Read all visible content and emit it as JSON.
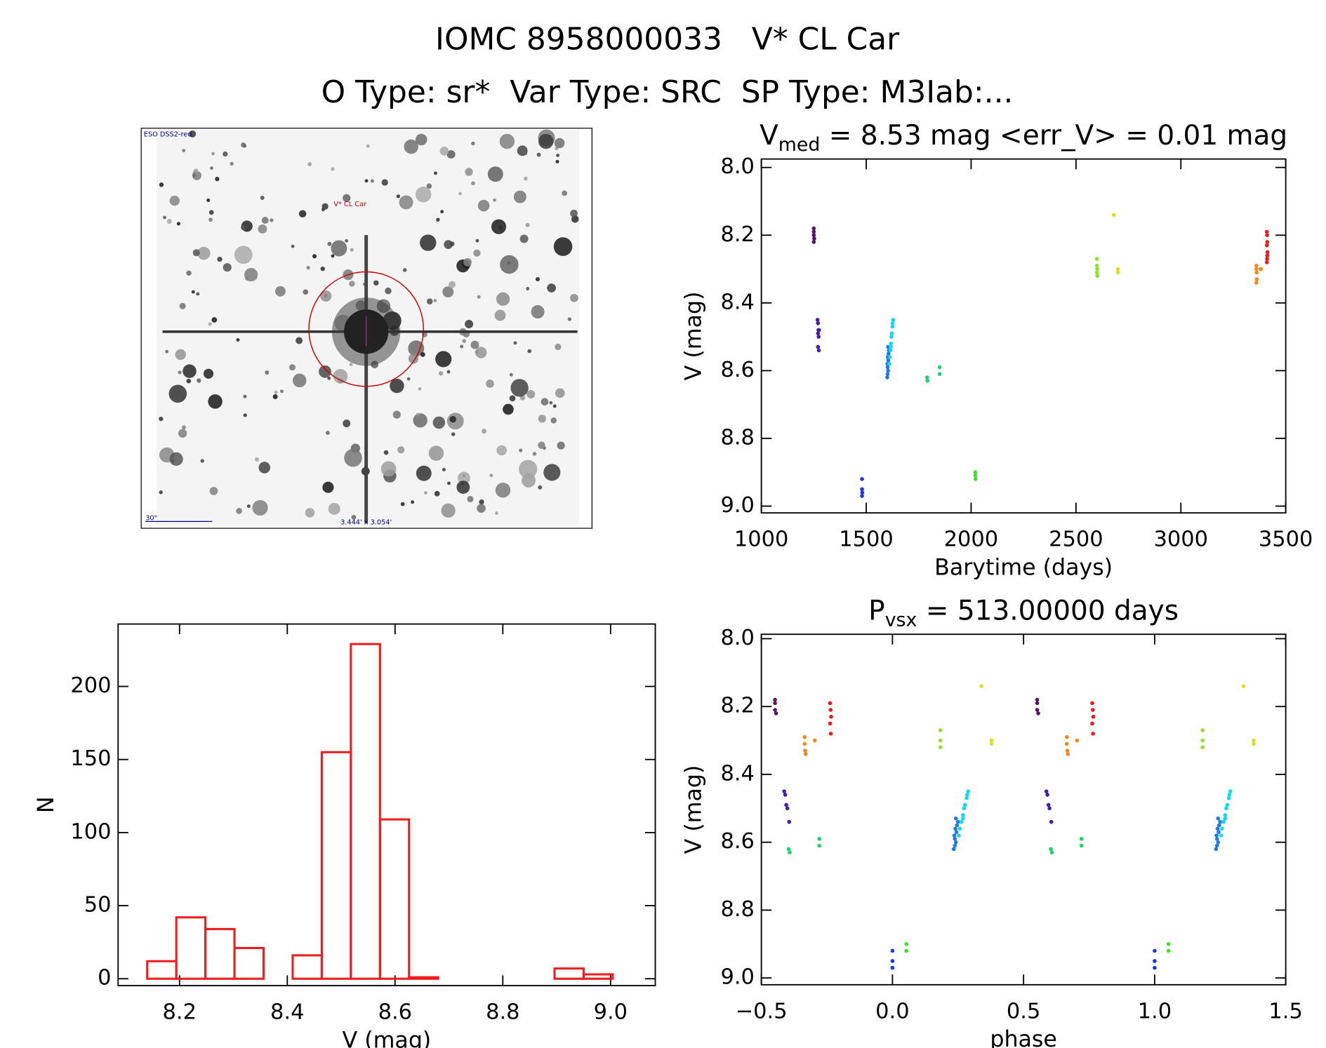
{
  "header": {
    "line1": "IOMC 8958000033   V* CL Car",
    "line2": "O Type: sr*  Var Type: SRC  SP Type: M3Iab:..."
  },
  "image": {
    "survey": "ESO DSS2-red",
    "target": "V* CL Car",
    "scale": "30\"",
    "size": "3.444' x 3.054'"
  },
  "chart_data": [
    {
      "type": "scatter",
      "title": {
        "main": "V",
        "sub": "med",
        "rest": " = 8.53 mag <err_V> = 0.01 mag"
      },
      "xlabel": "Barytime (days)",
      "ylabel": "V (mag)",
      "xlim": [
        1000,
        3500
      ],
      "xticks": [
        1000,
        1500,
        2000,
        2500,
        3000,
        3500
      ],
      "ylim": [
        9.02,
        7.975
      ],
      "yticks": [
        {
          "value": 8,
          "label": "8.0"
        },
        8.2,
        8.4,
        8.6,
        8.8,
        {
          "value": 9,
          "label": "9.0"
        }
      ],
      "series": [
        {
          "color": "#5b0f6e",
          "x": [
            1250,
            1250,
            1250,
            1252,
            1250
          ],
          "values": [
            8.18,
            8.19,
            8.2,
            8.21,
            8.22
          ]
        },
        {
          "color": "#4a1aa8",
          "x": [
            1268,
            1270,
            1272,
            1270,
            1273,
            1275,
            1270,
            1274
          ],
          "values": [
            8.45,
            8.46,
            8.48,
            8.49,
            8.5,
            8.48,
            8.53,
            8.54
          ]
        },
        {
          "color": "#1838e8",
          "x": [
            1480,
            1480,
            1481,
            1480
          ],
          "values": [
            8.92,
            8.95,
            8.96,
            8.97
          ]
        },
        {
          "color": "#1e78e8",
          "x": [
            1600,
            1602,
            1604,
            1601,
            1605,
            1603,
            1606,
            1604,
            1608,
            1602
          ],
          "values": [
            8.62,
            8.61,
            8.6,
            8.58,
            8.57,
            8.56,
            8.55,
            8.53,
            8.54,
            8.59
          ]
        },
        {
          "color": "#10d8f0",
          "x": [
            1610,
            1612,
            1615,
            1618,
            1620,
            1622,
            1625,
            1617,
            1626,
            1628
          ],
          "values": [
            8.58,
            8.56,
            8.54,
            8.52,
            8.5,
            8.49,
            8.47,
            8.53,
            8.46,
            8.45
          ]
        },
        {
          "color": "#20d070",
          "x": [
            1790,
            1792,
            1850,
            1850
          ],
          "values": [
            8.62,
            8.63,
            8.59,
            8.61
          ]
        },
        {
          "color": "#40e030",
          "x": [
            2020,
            2020,
            2021
          ],
          "values": [
            8.9,
            8.91,
            8.92
          ]
        },
        {
          "color": "#90e030",
          "x": [
            2600,
            2600,
            2601,
            2600,
            2602
          ],
          "values": [
            8.27,
            8.29,
            8.3,
            8.31,
            8.32
          ]
        },
        {
          "color": "#d8e020",
          "x": [
            2680,
            2700,
            2700
          ],
          "values": [
            8.14,
            8.3,
            8.31
          ]
        },
        {
          "color": "#f08a20",
          "x": [
            3360,
            3360,
            3361,
            3362,
            3360,
            3380,
            3382
          ],
          "values": [
            8.29,
            8.3,
            8.31,
            8.33,
            8.34,
            8.3,
            8.3
          ]
        },
        {
          "color": "#f01818",
          "x": [
            3410,
            3411,
            3412,
            3410,
            3413,
            3412,
            3411,
            3410
          ],
          "values": [
            8.19,
            8.2,
            8.22,
            8.23,
            8.25,
            8.26,
            8.27,
            8.28
          ]
        }
      ]
    },
    {
      "type": "histogram",
      "xlabel": "V (mag)",
      "ylabel": "N",
      "color": "#ee1c1c",
      "bins": [
        8.14,
        8.194,
        8.248,
        8.302,
        8.356,
        8.41,
        8.464,
        8.518,
        8.572,
        8.626,
        8.68,
        8.734,
        8.788,
        8.842,
        8.896,
        8.95,
        9.004
      ],
      "values": [
        12,
        42,
        34,
        21,
        0,
        16,
        155,
        229,
        109,
        1,
        0,
        0,
        0,
        0,
        7,
        3
      ],
      "xlim": [
        8.086,
        9.083
      ],
      "xticks": [
        8.2,
        8.4,
        8.6,
        8.8,
        {
          "value": 9,
          "label": "9.0"
        }
      ],
      "ylim": [
        -4.7,
        242.7
      ],
      "yticks": [
        0,
        50,
        100,
        150,
        200
      ]
    },
    {
      "type": "scatter",
      "title": {
        "main": "P",
        "sub": "vsx",
        "rest": " = 513.00000 days"
      },
      "xlabel": "phase",
      "ylabel": "V (mag)",
      "xlim": [
        -0.5,
        1.5
      ],
      "xticks": [
        {
          "value": -0.5,
          "label": "−0.5"
        },
        {
          "value": 0,
          "label": "0.0"
        },
        0.5,
        {
          "value": 1,
          "label": "1.0"
        },
        1.5
      ],
      "ylim": [
        9.02,
        7.987
      ],
      "yticks": [
        {
          "value": 8,
          "label": "8.0"
        },
        8.2,
        8.4,
        8.6,
        8.8,
        {
          "value": 9,
          "label": "9.0"
        }
      ],
      "series": [
        {
          "color": "#5b0f6e",
          "x": [
            -0.448,
            -0.448,
            -0.448,
            -0.444,
            0.552,
            0.552,
            0.552,
            0.556
          ],
          "values": [
            8.18,
            8.19,
            8.21,
            8.22,
            8.18,
            8.19,
            8.21,
            8.22
          ]
        },
        {
          "color": "#4a1aa8",
          "x": [
            -0.413,
            -0.409,
            -0.405,
            -0.401,
            -0.394,
            0.587,
            0.591,
            0.595,
            0.599,
            0.606
          ],
          "values": [
            8.45,
            8.46,
            8.49,
            8.5,
            8.54,
            8.45,
            8.46,
            8.49,
            8.5,
            8.54
          ]
        },
        {
          "color": "#1838e8",
          "x": [
            0,
            0,
            0,
            1,
            1,
            1
          ],
          "values": [
            8.92,
            8.95,
            8.97,
            8.92,
            8.95,
            8.97
          ]
        },
        {
          "color": "#1e78e8",
          "x": [
            0.234,
            0.238,
            0.242,
            0.236,
            0.244,
            0.24,
            0.246,
            0.242,
            0.25,
            0.238,
            1.234,
            1.238,
            1.242,
            1.236,
            1.244,
            1.24,
            1.246,
            1.242,
            1.25,
            1.238
          ],
          "values": [
            8.62,
            8.61,
            8.6,
            8.58,
            8.57,
            8.56,
            8.55,
            8.53,
            8.54,
            8.59,
            8.62,
            8.61,
            8.6,
            8.58,
            8.57,
            8.56,
            8.55,
            8.53,
            8.54,
            8.59
          ]
        },
        {
          "color": "#10d8f0",
          "x": [
            0.253,
            0.257,
            0.263,
            0.269,
            0.273,
            0.277,
            0.283,
            0.269,
            0.285,
            0.289,
            1.253,
            1.257,
            1.263,
            1.269,
            1.273,
            1.277,
            1.283,
            1.269,
            1.285,
            1.289
          ],
          "values": [
            8.58,
            8.56,
            8.54,
            8.52,
            8.5,
            8.49,
            8.47,
            8.53,
            8.46,
            8.45,
            8.58,
            8.56,
            8.54,
            8.52,
            8.5,
            8.49,
            8.47,
            8.53,
            8.46,
            8.45
          ]
        },
        {
          "color": "#20d070",
          "x": [
            -0.396,
            -0.392,
            -0.279,
            -0.279,
            0.604,
            0.608,
            0.721,
            0.721
          ],
          "values": [
            8.62,
            8.63,
            8.59,
            8.61,
            8.62,
            8.63,
            8.59,
            8.61
          ]
        },
        {
          "color": "#40e030",
          "x": [
            0.053,
            0.053,
            1.053,
            1.053
          ],
          "values": [
            8.9,
            8.92,
            8.9,
            8.92
          ]
        },
        {
          "color": "#90e030",
          "x": [
            0.183,
            0.183,
            0.183,
            1.183,
            1.183,
            1.183
          ],
          "values": [
            8.27,
            8.3,
            8.32,
            8.27,
            8.3,
            8.32
          ]
        },
        {
          "color": "#d8e020",
          "x": [
            0.339,
            0.378,
            0.378,
            1.339,
            1.378,
            1.378
          ],
          "values": [
            8.14,
            8.3,
            8.31,
            8.14,
            8.3,
            8.31
          ]
        },
        {
          "color": "#f08a20",
          "x": [
            -0.335,
            -0.335,
            -0.333,
            -0.331,
            -0.296,
            0.665,
            0.665,
            0.667,
            0.669,
            0.704
          ],
          "values": [
            8.29,
            8.31,
            8.33,
            8.34,
            8.3,
            8.29,
            8.31,
            8.33,
            8.34,
            8.3
          ]
        },
        {
          "color": "#f01818",
          "x": [
            -0.238,
            -0.236,
            -0.234,
            -0.238,
            -0.235,
            0.762,
            0.764,
            0.766,
            0.762,
            0.765
          ],
          "values": [
            8.19,
            8.21,
            8.23,
            8.25,
            8.28,
            8.19,
            8.21,
            8.23,
            8.25,
            8.28
          ]
        }
      ]
    }
  ]
}
